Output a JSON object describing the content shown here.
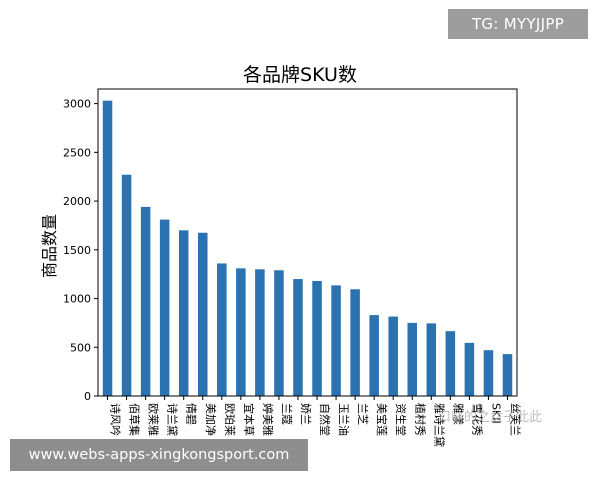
{
  "overlay": {
    "tg_badge": "TG: MYYJJPP",
    "url_banner": "www.webs-apps-xingkongsport.com",
    "watermark": "口味的之女子此此"
  },
  "colors": {
    "bar": "#2a72b0",
    "axis": "#000000",
    "tg_badge_bg": "#9d9d9d",
    "url_banner_bg": "#8e8e8e"
  },
  "chart_data": {
    "type": "bar",
    "title": "各品牌SKU数",
    "ylabel": "商品数量",
    "xlabel": "",
    "ylim": [
      0,
      3150
    ],
    "yticks": [
      0,
      500,
      1000,
      1500,
      2000,
      2500,
      3000
    ],
    "ytick_labels": [
      "0",
      "500",
      "1000",
      "1500",
      "2000",
      "2500",
      "3000"
    ],
    "grid": false,
    "categories": [
      "诗风吟",
      "佰草集",
      "欧莱雅",
      "诗兰黛",
      "倩碧",
      "美加净",
      "欧珀莱",
      "宜本草",
      "婷美雅",
      "兰蔻",
      "娇兰",
      "自然堂",
      "玉兰油",
      "兰芝",
      "美宝莲",
      "资生堂",
      "植村秀",
      "雅诗兰黛",
      "雅漾",
      "雪花秀",
      "SKII",
      "丝芙兰"
    ],
    "tick_labels": [
      "诗风吟",
      "佰草集",
      "欧莱雅",
      "诗兰黛",
      "倩碧",
      "美加净",
      "欧珀莱",
      "宜本草",
      "婷美雅",
      "兰蔻",
      "娇兰",
      "自然堂",
      "玉兰油",
      "兰芝",
      "美宝莲",
      "资生堂",
      "植村秀",
      "雅诗兰黛",
      "雅漾",
      "雪花秀",
      "SKII",
      "丝芙兰"
    ],
    "values": [
      3030,
      2270,
      1940,
      1810,
      1700,
      1675,
      1360,
      1310,
      1300,
      1290,
      1200,
      1180,
      1135,
      1095,
      830,
      815,
      750,
      745,
      665,
      545,
      470,
      430
    ]
  }
}
